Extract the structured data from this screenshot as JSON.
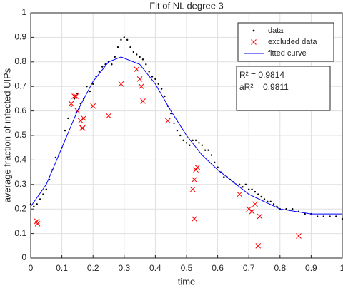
{
  "chart_data": {
    "type": "scatter",
    "title": "Fit of NL degree 3",
    "xlabel": "time",
    "ylabel": "average fraction of infected UIPs",
    "xlim": [
      0,
      1
    ],
    "ylim": [
      0,
      1
    ],
    "xticks": [
      0,
      0.1,
      0.2,
      0.3,
      0.4,
      0.5,
      0.6,
      0.7,
      0.8,
      0.9,
      1
    ],
    "yticks": [
      0,
      0.1,
      0.2,
      0.3,
      0.4,
      0.5,
      0.6,
      0.7,
      0.8,
      0.9,
      1
    ],
    "grid": true,
    "legend": "upper right",
    "annotations": [
      "R² = 0.9814",
      "aR² = 0.9811"
    ],
    "series": [
      {
        "name": "data",
        "color": "#000000",
        "mode": "dots",
        "x": [
          0,
          0.01,
          0.02,
          0.03,
          0.04,
          0.05,
          0.06,
          0.07,
          0.08,
          0.09,
          0.1,
          0.11,
          0.12,
          0.13,
          0.14,
          0.15,
          0.16,
          0.17,
          0.18,
          0.19,
          0.2,
          0.21,
          0.22,
          0.23,
          0.24,
          0.25,
          0.26,
          0.27,
          0.28,
          0.29,
          0.3,
          0.31,
          0.32,
          0.33,
          0.34,
          0.35,
          0.36,
          0.37,
          0.38,
          0.39,
          0.4,
          0.41,
          0.42,
          0.43,
          0.44,
          0.45,
          0.46,
          0.47,
          0.48,
          0.49,
          0.5,
          0.51,
          0.52,
          0.53,
          0.54,
          0.55,
          0.56,
          0.57,
          0.58,
          0.59,
          0.6,
          0.61,
          0.62,
          0.63,
          0.64,
          0.65,
          0.66,
          0.67,
          0.68,
          0.69,
          0.7,
          0.71,
          0.72,
          0.73,
          0.74,
          0.75,
          0.76,
          0.77,
          0.78,
          0.79,
          0.8,
          0.82,
          0.84,
          0.86,
          0.88,
          0.9,
          0.92,
          0.94,
          0.96,
          0.98,
          1
        ],
        "values": [
          0.22,
          0.21,
          0.22,
          0.24,
          0.26,
          0.28,
          0.32,
          0.36,
          0.41,
          0.42,
          0.45,
          0.52,
          0.57,
          0.62,
          0.65,
          0.67,
          0.63,
          0.65,
          0.7,
          0.68,
          0.71,
          0.74,
          0.76,
          0.78,
          0.79,
          0.8,
          0.79,
          0.82,
          0.86,
          0.89,
          0.9,
          0.89,
          0.86,
          0.84,
          0.83,
          0.82,
          0.81,
          0.79,
          0.76,
          0.74,
          0.73,
          0.71,
          0.69,
          0.66,
          0.62,
          0.59,
          0.55,
          0.52,
          0.5,
          0.48,
          0.47,
          0.46,
          0.48,
          0.48,
          0.47,
          0.46,
          0.44,
          0.44,
          0.42,
          0.39,
          0.37,
          0.35,
          0.33,
          0.33,
          0.32,
          0.31,
          0.3,
          0.3,
          0.29,
          0.3,
          0.28,
          0.28,
          0.27,
          0.26,
          0.25,
          0.24,
          0.23,
          0.23,
          0.22,
          0.21,
          0.2,
          0.2,
          0.2,
          0.19,
          0.18,
          0.18,
          0.17,
          0.17,
          0.17,
          0.17,
          0.16
        ]
      },
      {
        "name": "excluded data",
        "color": "#ff0000",
        "mode": "cross",
        "x": [
          0.02,
          0.022,
          0.13,
          0.14,
          0.145,
          0.15,
          0.16,
          0.165,
          0.167,
          0.17,
          0.2,
          0.25,
          0.29,
          0.34,
          0.35,
          0.355,
          0.36,
          0.44,
          0.52,
          0.525,
          0.53,
          0.535,
          0.525,
          0.67,
          0.7,
          0.71,
          0.72,
          0.73,
          0.735,
          0.86
        ],
        "values": [
          0.15,
          0.14,
          0.63,
          0.66,
          0.66,
          0.6,
          0.56,
          0.53,
          0.53,
          0.57,
          0.62,
          0.58,
          0.71,
          0.77,
          0.73,
          0.7,
          0.64,
          0.56,
          0.28,
          0.32,
          0.36,
          0.37,
          0.16,
          0.26,
          0.2,
          0.19,
          0.22,
          0.05,
          0.17,
          0.09
        ]
      },
      {
        "name": "fitted curve",
        "color": "#0000ff",
        "mode": "line",
        "x": [
          0,
          0.05,
          0.1,
          0.15,
          0.2,
          0.25,
          0.29,
          0.35,
          0.4,
          0.45,
          0.5,
          0.55,
          0.6,
          0.65,
          0.7,
          0.75,
          0.8,
          0.85,
          0.9,
          0.95,
          1
        ],
        "values": [
          0.21,
          0.3,
          0.45,
          0.6,
          0.72,
          0.8,
          0.82,
          0.79,
          0.71,
          0.6,
          0.5,
          0.42,
          0.36,
          0.31,
          0.26,
          0.23,
          0.2,
          0.19,
          0.18,
          0.18,
          0.18
        ]
      }
    ]
  }
}
